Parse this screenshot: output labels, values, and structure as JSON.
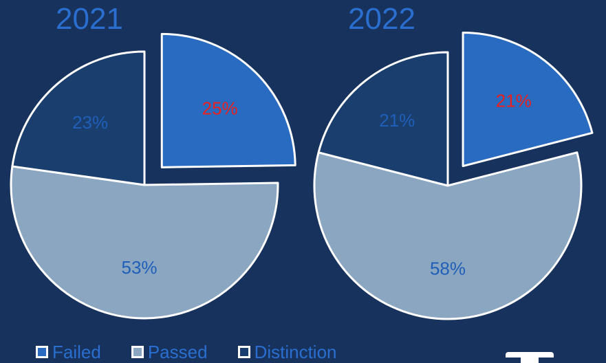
{
  "colors": {
    "background": "#17325c",
    "failed": "#2a6bc2",
    "passed": "#8ba6c0",
    "distinction": "#1a3f6e",
    "outline": "#ffffff",
    "label_default": "#1f5fb8",
    "label_highlight": "#e8201e",
    "title": "#2a6fd0"
  },
  "chart_data": [
    {
      "type": "pie",
      "title": "2021",
      "categories": [
        "Failed",
        "Passed",
        "Distinction"
      ],
      "values": [
        25,
        53,
        23
      ],
      "labels": [
        "25%",
        "53%",
        "23%"
      ],
      "exploded": [
        "Failed"
      ],
      "highlighted_label": "Failed"
    },
    {
      "type": "pie",
      "title": "2022",
      "categories": [
        "Failed",
        "Passed",
        "Distinction"
      ],
      "values": [
        21,
        58,
        21
      ],
      "labels": [
        "21%",
        "58%",
        "21%"
      ],
      "exploded": [
        "Failed"
      ],
      "highlighted_label": "Failed"
    }
  ],
  "legend": {
    "position": "bottom-left",
    "items": [
      {
        "label": "Failed",
        "color": "#2a6bc2"
      },
      {
        "label": "Passed",
        "color": "#8ba6c0"
      },
      {
        "label": "Distinction",
        "color": "#1a3f6e"
      }
    ]
  }
}
